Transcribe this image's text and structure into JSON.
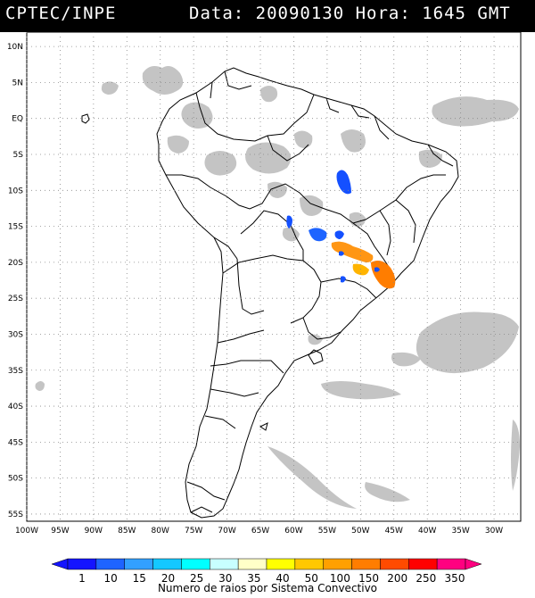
{
  "header": {
    "source": "CPTEC/INPE",
    "datetime": "Data: 20090130 Hora: 1645 GMT"
  },
  "map": {
    "lat_labels": [
      "10N",
      "5N",
      "EQ",
      "5S",
      "10S",
      "15S",
      "20S",
      "25S",
      "30S",
      "35S",
      "40S",
      "45S",
      "50S",
      "55S"
    ],
    "lon_labels": [
      "100W",
      "95W",
      "90W",
      "85W",
      "80W",
      "75W",
      "70W",
      "65W",
      "60W",
      "55W",
      "50W",
      "45W",
      "40W",
      "35W",
      "30W"
    ],
    "lat_range": [
      -56,
      12
    ],
    "lon_range": [
      -100,
      -26
    ],
    "grid": "dotted"
  },
  "colorbar": {
    "ticks": [
      "1",
      "10",
      "15",
      "20",
      "25",
      "30",
      "35",
      "40",
      "50",
      "100",
      "150",
      "200",
      "250",
      "350"
    ],
    "colors": [
      "#1414ff",
      "#1e64ff",
      "#32a0ff",
      "#14c8ff",
      "#00ffff",
      "#c8ffff",
      "#ffffc8",
      "#ffff00",
      "#ffc800",
      "#ffa000",
      "#ff7d00",
      "#ff4b00",
      "#ff0000",
      "#ff0080"
    ],
    "caption": "Numero de raios por Sistema Convectivo"
  },
  "colors": {
    "cloud": "#c0c0c0",
    "cell_low": "#1450ff",
    "cell_high": "#ff9614"
  }
}
